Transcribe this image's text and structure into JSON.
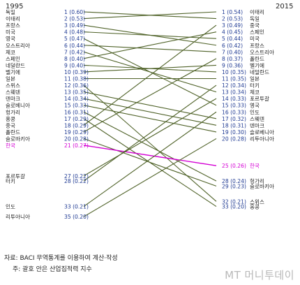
{
  "chart_data": {
    "type": "slope",
    "years": {
      "left": "1995",
      "right": "2015"
    },
    "left": [
      {
        "country": "독일",
        "rank": "1",
        "value": "(0.60)"
      },
      {
        "country": "이태리",
        "rank": "2",
        "value": "(0.53)"
      },
      {
        "country": "프랑스",
        "rank": "3",
        "value": "(0.49)"
      },
      {
        "country": "미국",
        "rank": "4",
        "value": "(0.48)"
      },
      {
        "country": "영국",
        "rank": "5",
        "value": "(0.47)"
      },
      {
        "country": "오스트리아",
        "rank": "6",
        "value": "(0.44)"
      },
      {
        "country": "체코",
        "rank": "7",
        "value": "(0.42)"
      },
      {
        "country": "스페인",
        "rank": "8",
        "value": "(0.40)"
      },
      {
        "country": "네덜란드",
        "rank": "9",
        "value": "(0.40)"
      },
      {
        "country": "벨기에",
        "rank": "10",
        "value": "(0.39)"
      },
      {
        "country": "일본",
        "rank": "11",
        "value": "(0.38)"
      },
      {
        "country": "스위스",
        "rank": "12",
        "value": "(0.36)"
      },
      {
        "country": "스웨덴",
        "rank": "13",
        "value": "(0.35)"
      },
      {
        "country": "덴마크",
        "rank": "14",
        "value": "(0.34)"
      },
      {
        "country": "슬로베니아",
        "rank": "15",
        "value": "(0.33)"
      },
      {
        "country": "헝가리",
        "rank": "16",
        "value": "(0.31)"
      },
      {
        "country": "홍콩",
        "rank": "17",
        "value": "(0.29)"
      },
      {
        "country": "중국",
        "rank": "18",
        "value": "(0.29)"
      },
      {
        "country": "폴란드",
        "rank": "19",
        "value": "(0.29)"
      },
      {
        "country": "슬로바키아",
        "rank": "20",
        "value": "(0.28)"
      },
      {
        "country": "한국",
        "rank": "21",
        "value": "(0.27)",
        "highlight": true
      },
      {
        "country": "포르투갈",
        "rank": "27",
        "value": "(0.22)"
      },
      {
        "country": "터키",
        "rank": "28",
        "value": "(0.22)"
      },
      {
        "country": "인도",
        "rank": "33",
        "value": "(0.21)"
      },
      {
        "country": "리투아니아",
        "rank": "35",
        "value": "(0.20)"
      }
    ],
    "right": [
      {
        "country": "이태리",
        "rank": "1",
        "value": "(0.54)"
      },
      {
        "country": "독일",
        "rank": "2",
        "value": "(0.53)"
      },
      {
        "country": "중국",
        "rank": "3",
        "value": "(0.49)"
      },
      {
        "country": "스페인",
        "rank": "4",
        "value": "(0.45)"
      },
      {
        "country": "미국",
        "rank": "5",
        "value": "(0.44)"
      },
      {
        "country": "프랑스",
        "rank": "6",
        "value": "(0.42)"
      },
      {
        "country": "오스트리아",
        "rank": "7",
        "value": "(0.40)"
      },
      {
        "country": "폴란드",
        "rank": "8",
        "value": "(0.37)"
      },
      {
        "country": "벨기에",
        "rank": "9",
        "value": "(0.36)"
      },
      {
        "country": "네덜란드",
        "rank": "10",
        "value": "(0.35)"
      },
      {
        "country": "일본",
        "rank": "11",
        "value": "(0.35)"
      },
      {
        "country": "터키",
        "rank": "12",
        "value": "(0.34)"
      },
      {
        "country": "체코",
        "rank": "13",
        "value": "(0.34)"
      },
      {
        "country": "포르투갈",
        "rank": "14",
        "value": "(0.33)"
      },
      {
        "country": "영국",
        "rank": "15",
        "value": "(0.33)"
      },
      {
        "country": "인도",
        "rank": "16",
        "value": "(0.33)"
      },
      {
        "country": "스웨덴",
        "rank": "17",
        "value": "(0.32)"
      },
      {
        "country": "덴마크",
        "rank": "18",
        "value": "(0.31)"
      },
      {
        "country": "슬로베니아",
        "rank": "19",
        "value": "(0.30)"
      },
      {
        "country": "리투아니아",
        "rank": "20",
        "value": "(0.28)"
      },
      {
        "country": "한국",
        "rank": "25",
        "value": "(0.26)",
        "highlight": true
      },
      {
        "country": "헝가리",
        "rank": "28",
        "value": "(0.24)"
      },
      {
        "country": "슬로바키아",
        "rank": "29",
        "value": "(0.23)"
      },
      {
        "country": "스위스",
        "rank": "32",
        "value": "(0.21)"
      },
      {
        "country": "홍콩",
        "rank": "33",
        "value": "(0.20)"
      }
    ],
    "highlight_color": "#d400d4",
    "line_color": "#4f6228",
    "value_color": "#1f3a93"
  },
  "source": {
    "line1": "자료: BACI 무역통계를 이용하여 계산·작성",
    "line2": "주: 괄호 안은 산업집적력 지수"
  },
  "watermark": "MT 머니투데이"
}
